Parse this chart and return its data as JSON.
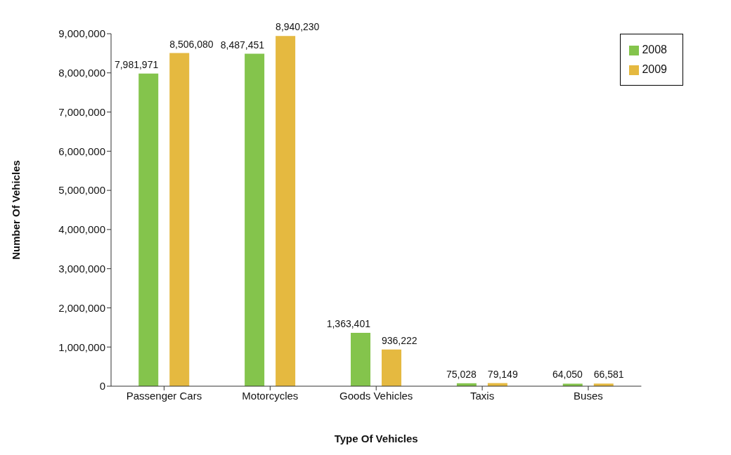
{
  "chart_data": {
    "type": "bar",
    "xlabel": "Type Of Vehicles",
    "ylabel": "Number Of Vehicles",
    "categories": [
      "Passenger Cars",
      "Motorcycles",
      "Goods Vehicles",
      "Taxis",
      "Buses"
    ],
    "series": [
      {
        "name": "2008",
        "color": "#84c44c",
        "values": [
          7981971,
          8487451,
          1363401,
          75028,
          64050
        ],
        "value_labels": [
          "7,981,971",
          "8,487,451",
          "1,363,401",
          "75,028",
          "64,050"
        ]
      },
      {
        "name": "2009",
        "color": "#e5b940",
        "values": [
          8506080,
          8940230,
          936222,
          79149,
          66581
        ],
        "value_labels": [
          "8,506,080",
          "8,940,230",
          "936,222",
          "79,149",
          "66,581"
        ]
      }
    ],
    "ylim": [
      0,
      9000000
    ],
    "yticks": [
      {
        "value": 0,
        "label": "0"
      },
      {
        "value": 1000000,
        "label": "1,000,000"
      },
      {
        "value": 2000000,
        "label": "2,000,000"
      },
      {
        "value": 3000000,
        "label": "3,000,000"
      },
      {
        "value": 4000000,
        "label": "4,000,000"
      },
      {
        "value": 5000000,
        "label": "5,000,000"
      },
      {
        "value": 6000000,
        "label": "6,000,000"
      },
      {
        "value": 7000000,
        "label": "7,000,000"
      },
      {
        "value": 8000000,
        "label": "8,000,000"
      },
      {
        "value": 9000000,
        "label": "9,000,000"
      }
    ],
    "legend": "top right",
    "grid": false
  }
}
